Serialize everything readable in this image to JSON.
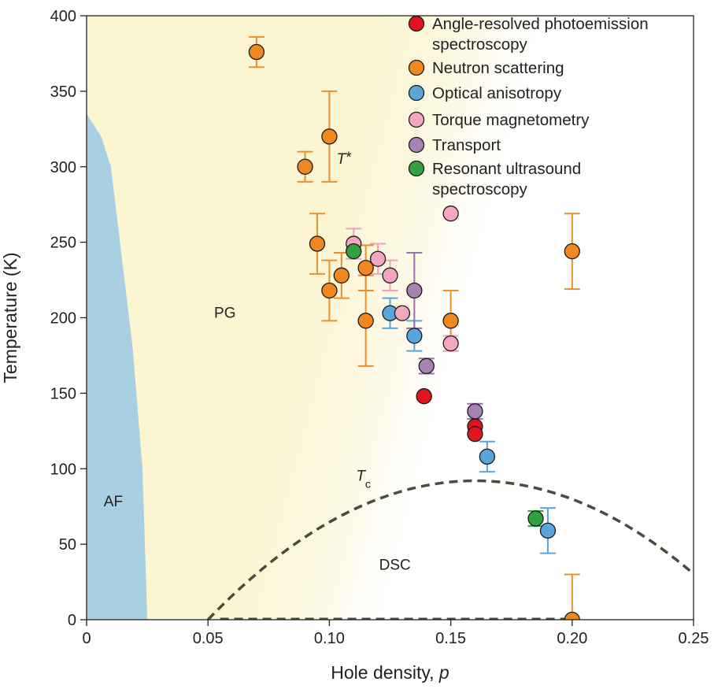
{
  "chart_data": {
    "type": "scatter",
    "title": "",
    "xlabel": "Hole density, p",
    "xlabel_main": "Hole density, ",
    "xlabel_var": "p",
    "ylabel": "Temperature (K)",
    "xlim": [
      0,
      0.25
    ],
    "ylim": [
      0,
      400
    ],
    "x_ticks": [
      0,
      0.05,
      0.1,
      0.15,
      0.2,
      0.25
    ],
    "x_tick_labels": [
      "0",
      "0.05",
      "0.10",
      "0.15",
      "0.20",
      "0.25"
    ],
    "y_ticks": [
      0,
      50,
      100,
      150,
      200,
      250,
      300,
      350,
      400
    ],
    "y_tick_labels": [
      "0",
      "50",
      "100",
      "150",
      "200",
      "250",
      "300",
      "350",
      "400"
    ],
    "grid": false,
    "legend_position": "top-right",
    "regions": [
      {
        "name": "AF",
        "label": "AF",
        "color": "#a9cfe2",
        "boundary_p": [
          0.0,
          0.006,
          0.01,
          0.013,
          0.016,
          0.019,
          0.021,
          0.023,
          0.024,
          0.025
        ],
        "boundary_T": [
          335,
          320,
          300,
          260,
          220,
          180,
          140,
          100,
          50,
          0
        ],
        "label_at": [
          0.011,
          75
        ]
      },
      {
        "name": "PG",
        "label": "PG",
        "color": "#fbf5d2",
        "label_at": [
          0.057,
          200
        ]
      },
      {
        "name": "DSC",
        "label": "DSC",
        "label_at": [
          0.127,
          33
        ]
      }
    ],
    "annotations": [
      {
        "name": "T-star",
        "main": "T",
        "sup": "*",
        "at": [
          0.103,
          302
        ]
      },
      {
        "name": "Tc",
        "main": "T",
        "sub": "c",
        "at": [
          0.111,
          92
        ]
      }
    ],
    "tc_dome": {
      "color": "#4a4d3c",
      "p_min": 0.05,
      "p_opt": 0.16,
      "T_max": 92,
      "p_max": 0.25
    },
    "series": [
      {
        "name": "Angle-resolved photoemission spectroscopy",
        "legend_lines": [
          "Angle-resolved photoemission",
          "spectroscopy"
        ],
        "color": "#e0141e",
        "error_color": "#e0141e",
        "points": [
          {
            "x": 0.139,
            "y": 148,
            "err": 0
          },
          {
            "x": 0.16,
            "y": 128,
            "err": 0
          },
          {
            "x": 0.16,
            "y": 123,
            "err": 0
          }
        ]
      },
      {
        "name": "Neutron scattering",
        "legend_lines": [
          "Neutron scattering"
        ],
        "color": "#f0871f",
        "error_color": "#e8902e",
        "points": [
          {
            "x": 0.07,
            "y": 376,
            "err": 10
          },
          {
            "x": 0.09,
            "y": 300,
            "err": 10
          },
          {
            "x": 0.1,
            "y": 320,
            "err": 30
          },
          {
            "x": 0.095,
            "y": 249,
            "err": 20
          },
          {
            "x": 0.1,
            "y": 218,
            "err": 20
          },
          {
            "x": 0.105,
            "y": 228,
            "err": 15
          },
          {
            "x": 0.115,
            "y": 233,
            "err": 15
          },
          {
            "x": 0.115,
            "y": 198,
            "err": 30
          },
          {
            "x": 0.15,
            "y": 198,
            "err": 20
          },
          {
            "x": 0.2,
            "y": 244,
            "err": 25
          },
          {
            "x": 0.2,
            "y": 0,
            "err": 30
          }
        ]
      },
      {
        "name": "Optical anisotropy",
        "legend_lines": [
          "Optical anisotropy"
        ],
        "color": "#5aa6dc",
        "error_color": "#5aa6dc",
        "points": [
          {
            "x": 0.125,
            "y": 203,
            "err": 10
          },
          {
            "x": 0.135,
            "y": 188,
            "err": 10
          },
          {
            "x": 0.165,
            "y": 108,
            "err": 10
          },
          {
            "x": 0.19,
            "y": 59,
            "err": 15
          }
        ]
      },
      {
        "name": "Torque magnetometry",
        "legend_lines": [
          "Torque magnetometry"
        ],
        "color": "#f4a6c0",
        "error_color": "#f0a0bc",
        "points": [
          {
            "x": 0.11,
            "y": 249,
            "err": 10
          },
          {
            "x": 0.12,
            "y": 239,
            "err": 10
          },
          {
            "x": 0.125,
            "y": 228,
            "err": 10
          },
          {
            "x": 0.13,
            "y": 203,
            "err": 0
          },
          {
            "x": 0.15,
            "y": 269,
            "err": 0
          },
          {
            "x": 0.15,
            "y": 183,
            "err": 5
          }
        ]
      },
      {
        "name": "Transport",
        "legend_lines": [
          "Transport"
        ],
        "color": "#a982b4",
        "error_color": "#9a70ac",
        "points": [
          {
            "x": 0.135,
            "y": 218,
            "err": 25
          },
          {
            "x": 0.14,
            "y": 168,
            "err": 5
          },
          {
            "x": 0.16,
            "y": 138,
            "err": 5
          }
        ]
      },
      {
        "name": "Resonant ultrasound spectroscopy",
        "legend_lines": [
          "Resonant ultrasound",
          "spectroscopy"
        ],
        "color": "#32a043",
        "error_color": "#32a043",
        "points": [
          {
            "x": 0.11,
            "y": 244,
            "err": 0
          },
          {
            "x": 0.185,
            "y": 67,
            "err": 5
          }
        ]
      }
    ]
  }
}
